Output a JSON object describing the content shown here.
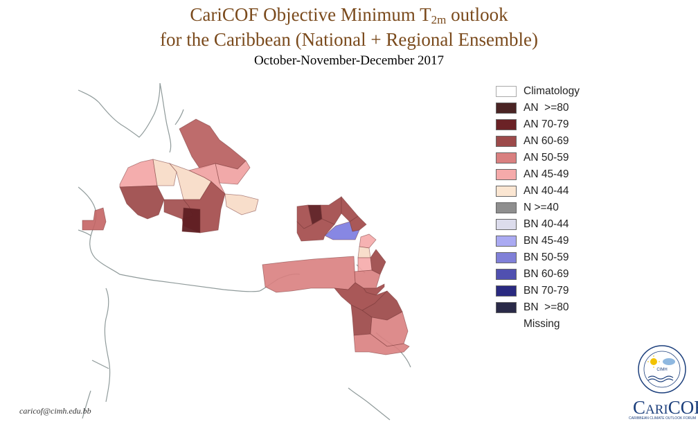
{
  "header": {
    "title_main": "CariCOF Objective Minimum T",
    "title_sub": "2m",
    "title_tail": " outlook",
    "title_line2": "for the Caribbean (National + Regional Ensemble)",
    "period": "October-November-December 2017"
  },
  "legend": {
    "items": [
      {
        "label": "Climatology",
        "color": "#ffffff"
      },
      {
        "label": "AN  >=80",
        "color": "#4a2424"
      },
      {
        "label": "AN 70-79",
        "color": "#6b2226"
      },
      {
        "label": "AN 60-69",
        "color": "#9c4a4a"
      },
      {
        "label": "AN 50-59",
        "color": "#d98080"
      },
      {
        "label": "AN 45-49",
        "color": "#f5aaaa"
      },
      {
        "label": "AN 40-44",
        "color": "#fbe6d2"
      },
      {
        "label": "N >=40",
        "color": "#8e8e8e"
      },
      {
        "label": "BN 40-44",
        "color": "#dcdcec"
      },
      {
        "label": "BN 45-49",
        "color": "#aaaaf2"
      },
      {
        "label": "BN 50-59",
        "color": "#8080d8"
      },
      {
        "label": "BN 60-69",
        "color": "#5050b0"
      },
      {
        "label": "BN 70-79",
        "color": "#2a2a80"
      },
      {
        "label": "BN  >=80",
        "color": "#2a2a48"
      },
      {
        "label": "Missing",
        "color": ""
      }
    ]
  },
  "footer": {
    "email": "caricof@cimh.edu.bb"
  },
  "logo": {
    "org": "CIMH",
    "wordmark_a": "C",
    "wordmark_b": "ARI",
    "wordmark_c": "COF",
    "tagline": "CARIBBEAN CLIMATE OUTLOOK FORUM"
  }
}
